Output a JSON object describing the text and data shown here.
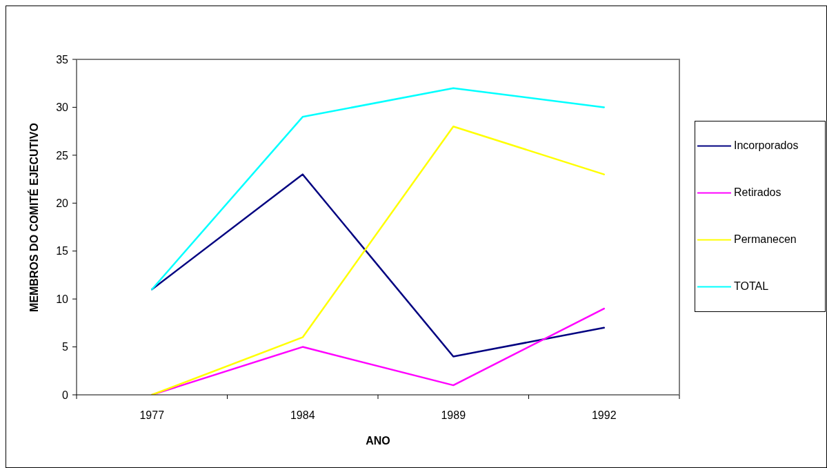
{
  "chart_data": {
    "type": "line",
    "xlabel": "ANO",
    "ylabel": "MEMBROS DO COMITÉ EJECUTIVO",
    "categories": [
      "1977",
      "1984",
      "1989",
      "1992"
    ],
    "series": [
      {
        "name": "Incorporados",
        "color": "#000080",
        "values": [
          11,
          23,
          4,
          7
        ]
      },
      {
        "name": "Retirados",
        "color": "#ff00ff",
        "values": [
          0,
          5,
          1,
          9
        ]
      },
      {
        "name": "Permanecen",
        "color": "#ffff00",
        "values": [
          0,
          6,
          28,
          23
        ]
      },
      {
        "name": "TOTAL",
        "color": "#00ffff",
        "values": [
          11,
          29,
          32,
          30
        ]
      }
    ],
    "ylim": [
      0,
      35
    ],
    "yticks": [
      0,
      5,
      10,
      15,
      20,
      25,
      30,
      35
    ],
    "legend": "right"
  }
}
